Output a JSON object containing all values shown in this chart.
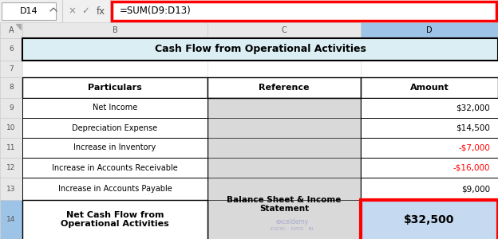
{
  "formula_bar_cell": "D14",
  "formula_bar_formula": "=SUM(D9:D13)",
  "title": "Cash Flow from Operational Activities",
  "headers": [
    "Particulars",
    "Reference",
    "Amount"
  ],
  "rows": [
    {
      "particular": "Net Income",
      "amount": "$32,000",
      "amount_color": "#000000"
    },
    {
      "particular": "Depreciation Expense",
      "amount": "$14,500",
      "amount_color": "#000000"
    },
    {
      "particular": "Increase in Inventory",
      "amount": "-$7,000",
      "amount_color": "#FF0000"
    },
    {
      "particular": "Increase in Accounts Receivable",
      "amount": "-$16,000",
      "amount_color": "#FF0000"
    },
    {
      "particular": "Increase in Accounts Payable",
      "amount": "$9,000",
      "amount_color": "#000000"
    }
  ],
  "total_label": "Net Cash Flow from\nOperational Activities",
  "total_amount": "$32,500",
  "reference_label": "Balance Sheet & Income\nStatement",
  "watermark_line1": "exceldemy",
  "watermark_line2": "EXCEL · DATA · BI",
  "title_bg": "#DAEEF3",
  "ref_cell_bg": "#D9D9D9",
  "total_amount_bg": "#C5D9F1",
  "total_border_color": "#FF0000",
  "formula_bar_border": "#FF0000",
  "col_header_selected_bg": "#9DC3E6",
  "col_header_bg": "#E8E8E8",
  "row_header_selected_bg": "#9DC3E6",
  "row_header_bg": "#E8E8E8"
}
